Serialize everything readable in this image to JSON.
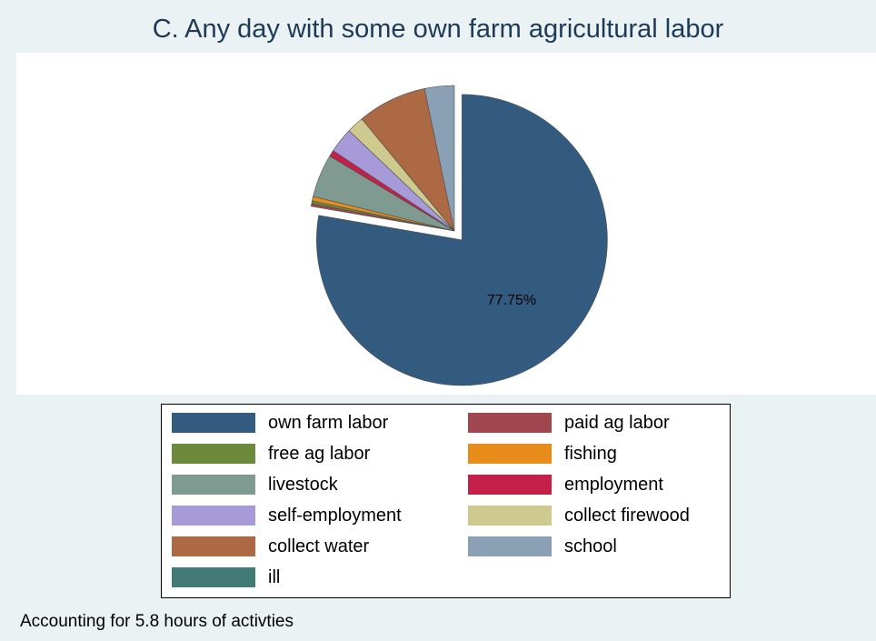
{
  "chart_data": {
    "type": "pie",
    "title": "C. Any day with some own farm agricultural labor",
    "note": "Accounting for 5.8 hours of activties",
    "slices": [
      {
        "label": "own farm labor",
        "value": 77.75,
        "color": "#335b80",
        "shown_label": "77.75%",
        "exploded": true
      },
      {
        "label": "paid ag labor",
        "value": 0.3,
        "color": "#a0474f"
      },
      {
        "label": "free ag labor",
        "value": 0.3,
        "color": "#6b8a3c"
      },
      {
        "label": "fishing",
        "value": 0.5,
        "color": "#e88c1b"
      },
      {
        "label": "livestock",
        "value": 4.8,
        "color": "#7f9a90"
      },
      {
        "label": "employment",
        "value": 0.7,
        "color": "#c4204a"
      },
      {
        "label": "self-employment",
        "value": 2.8,
        "color": "#a79ad8"
      },
      {
        "label": "collect firewood",
        "value": 1.9,
        "color": "#cec98f"
      },
      {
        "label": "collect water",
        "value": 7.7,
        "color": "#ad6844"
      },
      {
        "label": "school",
        "value": 3.3,
        "color": "#8aa0b5"
      },
      {
        "label": "ill",
        "value": 0.0,
        "color": "#427b76"
      }
    ],
    "legend": {
      "placement": "bottom",
      "columns": 2,
      "entries": [
        "own farm labor",
        "paid ag labor",
        "free ag labor",
        "fishing",
        "livestock",
        "employment",
        "self-employment",
        "collect firewood",
        "collect water",
        "school",
        "ill"
      ]
    }
  }
}
